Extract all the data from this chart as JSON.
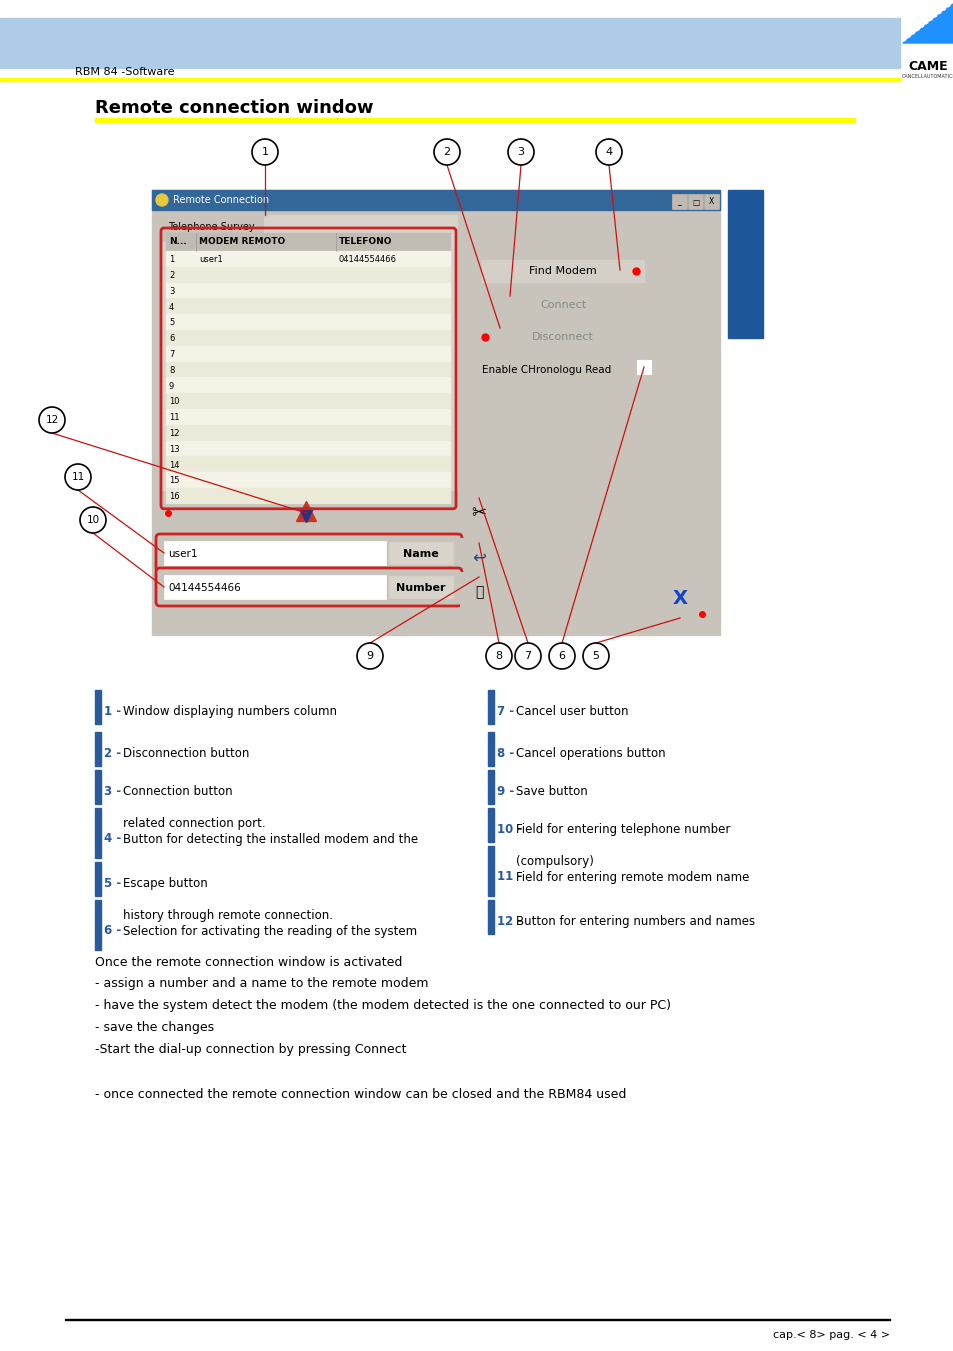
{
  "title": "Remote connection window",
  "header_text": "RBM 84 -Software",
  "bg_color": "#ffffff",
  "header_bar_color": "#aecce8",
  "yellow_bar_color": "#ffff00",
  "blue_accent": "#2a5a9e",
  "items_left": [
    {
      "num": "1",
      "text": "Window displaying numbers column"
    },
    {
      "num": "2",
      "text": "Disconnection button"
    },
    {
      "num": "3",
      "text": "Connection button"
    },
    {
      "num": "4",
      "text": "Button for detecting the installed modem and the",
      "text2": "related connection port."
    },
    {
      "num": "5",
      "text": "Escape button"
    },
    {
      "num": "6",
      "text": "Selection for activating the reading of the system",
      "text2": "history through remote connection."
    }
  ],
  "items_right": [
    {
      "num": "7",
      "text": "Cancel user button"
    },
    {
      "num": "8",
      "text": "Cancel operations button"
    },
    {
      "num": "9",
      "text": "Save button"
    },
    {
      "num": "10",
      "text": "Field for entering telephone number"
    },
    {
      "num": "11",
      "text": "Field for entering remote modem name",
      "text2": "(compulsory)"
    },
    {
      "num": "12",
      "text": "Button for entering numbers and names"
    }
  ],
  "body_text": [
    "Once the remote connection window is activated",
    "- assign a number and a name to the remote modem",
    "- have the system detect the modem (the modem detected is the one connected to our PC)",
    "- save the changes",
    "-Start the dial-up connection by pressing Connect",
    "",
    "- once connected the remote connection window can be closed and the RBM84 used"
  ],
  "footer_text": "cap.< 8> pag. < 4 >"
}
